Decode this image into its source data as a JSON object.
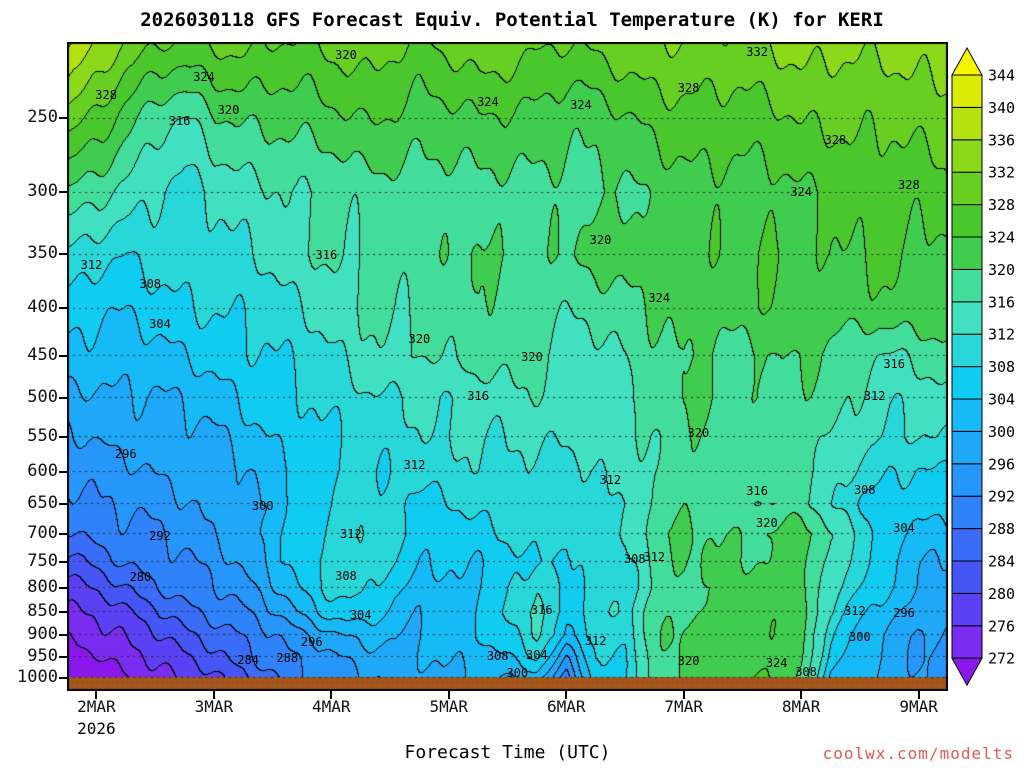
{
  "title": "2026030118 GFS Forecast Equiv. Potential Temperature (K) for KERI",
  "xlabel": "Forecast Time (UTC)",
  "year_label": "2026",
  "watermark": {
    "text": "coolwx.com/modelts",
    "color": "#e05a4e"
  },
  "axes": {
    "x_ticks": [
      {
        "label": "2MAR",
        "hour": 6
      },
      {
        "label": "3MAR",
        "hour": 30
      },
      {
        "label": "4MAR",
        "hour": 54
      },
      {
        "label": "5MAR",
        "hour": 78
      },
      {
        "label": "6MAR",
        "hour": 102
      },
      {
        "label": "7MAR",
        "hour": 126
      },
      {
        "label": "8MAR",
        "hour": 150
      },
      {
        "label": "9MAR",
        "hour": 174
      }
    ],
    "y_ticks": [
      250,
      300,
      350,
      400,
      450,
      500,
      550,
      600,
      650,
      700,
      750,
      800,
      850,
      900,
      950,
      1000
    ],
    "time_range_hours": [
      0,
      180
    ],
    "pressure_range": [
      207,
      1033
    ]
  },
  "colorbar": {
    "levels": [
      272,
      276,
      280,
      284,
      288,
      292,
      296,
      300,
      304,
      308,
      312,
      316,
      320,
      324,
      328,
      332,
      336,
      340,
      344
    ],
    "band_colors": [
      "#8a18ec",
      "#7a2cf0",
      "#5c40f4",
      "#4656f6",
      "#3a6cf8",
      "#2f82fa",
      "#2696fa",
      "#1fa8f8",
      "#16baf6",
      "#0fccf0",
      "#28d8d8",
      "#40e0c0",
      "#42dd9a",
      "#40cc4e",
      "#4bc72e",
      "#66cf22",
      "#8cd81a",
      "#b4e211",
      "#daec08",
      "#f5f500"
    ]
  },
  "ground": {
    "color": "#a3571c",
    "pressure_top": 1000,
    "dotted_line_color": "#aa2200"
  },
  "chart_data": {
    "type": "contour",
    "title": "2026030118 GFS Forecast Equiv. Potential Temperature (K) for KERI",
    "xlabel": "Forecast Time (UTC)",
    "ylabel": "",
    "units": "K",
    "contour_interval": 4,
    "x_hours": [
      0,
      6,
      12,
      18,
      24,
      30,
      36,
      42,
      48,
      54,
      60,
      66,
      72,
      78,
      84,
      90,
      96,
      102,
      108,
      114,
      120,
      126,
      132,
      138,
      144,
      150,
      156,
      162,
      168,
      174,
      180
    ],
    "pressure_levels": [
      200,
      250,
      300,
      350,
      400,
      450,
      500,
      550,
      600,
      650,
      700,
      750,
      800,
      850,
      900,
      950,
      1000
    ],
    "grid_theta_e": [
      [
        342,
        338,
        334,
        331,
        329,
        330,
        331,
        330,
        329,
        330,
        331,
        330,
        329,
        331,
        332,
        331,
        330,
        330,
        331,
        332,
        332,
        333,
        333,
        332,
        333,
        334,
        334,
        334,
        335,
        334,
        334
      ],
      [
        330,
        326,
        322,
        318,
        316,
        319,
        320,
        321,
        322,
        323,
        324,
        323,
        322,
        323,
        324,
        323,
        322,
        321,
        322,
        324,
        325,
        326,
        326,
        327,
        327,
        328,
        328,
        329,
        329,
        330,
        330
      ],
      [
        320,
        317,
        314,
        312,
        311,
        313,
        314,
        315,
        316,
        317,
        318,
        318,
        317,
        318,
        319,
        319,
        318,
        318,
        319,
        320,
        321,
        322,
        322,
        322,
        323,
        324,
        324,
        325,
        326,
        326,
        327
      ],
      [
        312,
        310,
        308,
        309,
        310,
        311,
        312,
        313,
        315,
        316,
        317,
        318,
        318,
        319,
        320,
        320,
        319,
        320,
        321,
        322,
        322,
        323,
        323,
        323,
        324,
        324,
        324,
        324,
        324,
        323,
        323
      ],
      [
        306,
        305,
        305,
        306,
        307,
        308,
        309,
        310,
        312,
        313,
        316,
        317,
        317,
        318,
        319,
        318,
        318,
        317,
        317,
        318,
        320,
        322,
        322,
        322,
        323,
        323,
        322,
        323,
        323,
        322,
        322
      ],
      [
        302,
        302,
        302,
        303,
        304,
        305,
        307,
        308,
        310,
        311,
        314,
        315,
        316,
        317,
        318,
        317,
        316,
        315,
        315,
        316,
        318,
        320,
        320,
        319,
        320,
        320,
        319,
        317,
        316,
        317,
        318
      ],
      [
        298,
        299,
        299,
        300,
        301,
        302,
        304,
        306,
        308,
        310,
        311,
        311,
        312,
        313,
        314,
        315,
        315,
        314,
        315,
        316,
        318,
        320,
        320,
        319,
        320,
        319,
        318,
        315,
        313,
        314,
        315
      ],
      [
        296,
        297,
        297,
        298,
        299,
        300,
        302,
        304,
        306,
        308,
        310,
        310,
        311,
        312,
        312,
        313,
        313,
        312,
        313,
        315,
        317,
        319,
        319,
        318,
        318,
        318,
        316,
        313,
        311,
        312,
        313
      ],
      [
        293,
        294,
        295,
        296,
        297,
        298,
        300,
        302,
        305,
        307,
        309,
        309,
        310,
        310,
        311,
        311,
        312,
        310,
        312,
        312,
        317,
        319,
        319,
        318,
        317,
        318,
        315,
        311,
        308,
        307,
        308
      ],
      [
        290,
        292,
        293,
        294,
        295,
        297,
        299,
        302,
        305,
        308,
        310,
        309,
        307,
        308,
        309,
        310,
        311,
        310,
        312,
        311,
        317,
        319,
        318,
        317,
        316,
        317,
        313,
        308,
        306,
        305,
        306
      ],
      [
        287,
        289,
        291,
        292,
        294,
        296,
        298,
        302,
        306,
        310,
        312,
        309,
        306,
        306,
        307,
        308,
        309,
        308,
        312,
        312,
        319,
        320,
        320,
        320,
        321,
        322,
        316,
        311,
        306,
        303,
        302
      ],
      [
        283,
        285,
        288,
        290,
        292,
        294,
        297,
        301,
        306,
        311,
        312,
        308,
        304,
        304,
        305,
        307,
        308,
        306,
        311,
        311,
        318,
        320,
        320,
        320,
        321,
        322,
        315,
        310,
        304,
        301,
        300
      ],
      [
        279,
        281,
        284,
        287,
        290,
        292,
        295,
        299,
        304,
        309,
        310,
        306,
        302,
        302,
        304,
        308,
        312,
        306,
        310,
        310,
        317,
        320,
        320,
        321,
        321,
        322,
        314,
        308,
        303,
        300,
        298
      ],
      [
        275,
        277,
        280,
        283,
        286,
        289,
        292,
        296,
        301,
        305,
        306,
        304,
        301,
        302,
        304,
        308,
        314,
        306,
        311,
        311,
        318,
        320,
        321,
        321,
        322,
        322,
        312,
        306,
        301,
        298,
        296
      ],
      [
        272,
        274,
        277,
        280,
        283,
        285,
        288,
        292,
        296,
        299,
        301,
        300,
        300,
        302,
        304,
        306,
        312,
        304,
        310,
        310,
        318,
        321,
        322,
        322,
        323,
        321,
        308,
        303,
        299,
        296,
        295
      ],
      [
        269,
        271,
        274,
        277,
        280,
        283,
        286,
        290,
        293,
        296,
        298,
        298,
        299,
        301,
        302,
        304,
        308,
        296,
        308,
        309,
        318,
        321,
        322,
        322,
        323,
        321,
        306,
        301,
        299,
        296,
        294
      ],
      [
        266,
        268,
        271,
        274,
        277,
        280,
        283,
        287,
        291,
        294,
        296,
        297,
        298,
        299,
        300,
        301,
        302,
        290,
        306,
        308,
        318,
        321,
        322,
        323,
        324,
        320,
        304,
        300,
        298,
        296,
        294
      ]
    ],
    "contour_labels": [
      {
        "t": 8,
        "p": 236,
        "v": "328"
      },
      {
        "t": 28,
        "p": 226,
        "v": "324"
      },
      {
        "t": 23,
        "p": 252,
        "v": "316"
      },
      {
        "t": 33,
        "p": 245,
        "v": "320"
      },
      {
        "t": 57,
        "p": 214,
        "v": "320"
      },
      {
        "t": 86,
        "p": 240,
        "v": "324"
      },
      {
        "t": 105,
        "p": 242,
        "v": "324"
      },
      {
        "t": 127,
        "p": 232,
        "v": "328"
      },
      {
        "t": 141,
        "p": 212,
        "v": "332"
      },
      {
        "t": 157,
        "p": 264,
        "v": "328"
      },
      {
        "t": 172,
        "p": 295,
        "v": "328"
      },
      {
        "t": 109,
        "p": 338,
        "v": "320"
      },
      {
        "t": 53,
        "p": 351,
        "v": "316"
      },
      {
        "t": 5,
        "p": 360,
        "v": "312"
      },
      {
        "t": 17,
        "p": 377,
        "v": "308"
      },
      {
        "t": 19,
        "p": 416,
        "v": "304"
      },
      {
        "t": 12,
        "p": 574,
        "v": "296"
      },
      {
        "t": 19,
        "p": 704,
        "v": "292"
      },
      {
        "t": 15,
        "p": 779,
        "v": "280"
      },
      {
        "t": 40,
        "p": 654,
        "v": "300"
      },
      {
        "t": 50,
        "p": 916,
        "v": "296"
      },
      {
        "t": 37,
        "p": 957,
        "v": "284"
      },
      {
        "t": 45,
        "p": 953,
        "v": "288"
      },
      {
        "t": 60,
        "p": 856,
        "v": "304"
      },
      {
        "t": 57,
        "p": 776,
        "v": "308"
      },
      {
        "t": 58,
        "p": 700,
        "v": "312"
      },
      {
        "t": 71,
        "p": 590,
        "v": "312"
      },
      {
        "t": 84,
        "p": 497,
        "v": "316"
      },
      {
        "t": 72,
        "p": 432,
        "v": "320"
      },
      {
        "t": 95,
        "p": 452,
        "v": "320"
      },
      {
        "t": 92,
        "p": 988,
        "v": "300"
      },
      {
        "t": 88,
        "p": 948,
        "v": "308"
      },
      {
        "t": 96,
        "p": 946,
        "v": "304"
      },
      {
        "t": 97,
        "p": 845,
        "v": "316"
      },
      {
        "t": 108,
        "p": 912,
        "v": "312"
      },
      {
        "t": 111,
        "p": 612,
        "v": "312"
      },
      {
        "t": 116,
        "p": 745,
        "v": "308"
      },
      {
        "t": 120,
        "p": 742,
        "v": "312"
      },
      {
        "t": 129,
        "p": 545,
        "v": "320"
      },
      {
        "t": 121,
        "p": 390,
        "v": "324"
      },
      {
        "t": 141,
        "p": 630,
        "v": "316"
      },
      {
        "t": 143,
        "p": 682,
        "v": "320"
      },
      {
        "t": 127,
        "p": 958,
        "v": "320"
      },
      {
        "t": 145,
        "p": 963,
        "v": "324"
      },
      {
        "t": 151,
        "p": 985,
        "v": "308"
      },
      {
        "t": 163,
        "p": 628,
        "v": "308"
      },
      {
        "t": 165,
        "p": 497,
        "v": "312"
      },
      {
        "t": 169,
        "p": 460,
        "v": "316"
      },
      {
        "t": 171,
        "p": 690,
        "v": "304"
      },
      {
        "t": 162,
        "p": 903,
        "v": "300"
      },
      {
        "t": 171,
        "p": 852,
        "v": "296"
      },
      {
        "t": 161,
        "p": 848,
        "v": "312"
      },
      {
        "t": 150,
        "p": 300,
        "v": "324"
      }
    ]
  }
}
